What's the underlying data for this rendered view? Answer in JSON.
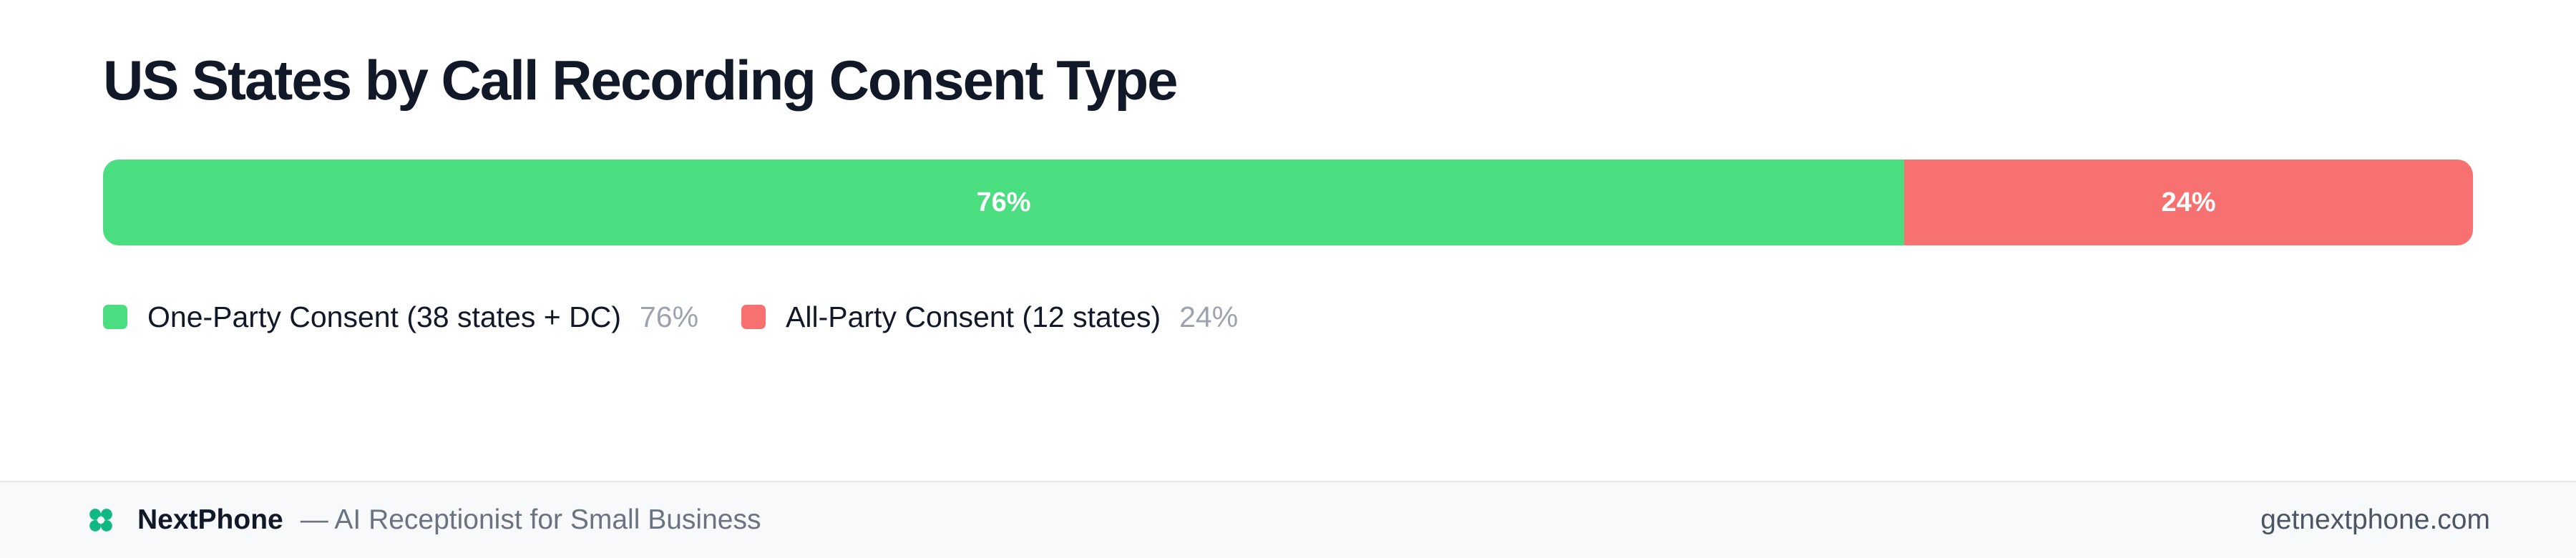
{
  "chart_data": {
    "type": "bar",
    "orientation": "horizontal-stacked-100",
    "title": "US States by Call Recording Consent Type",
    "categories": [
      "One-Party Consent (38 states + DC)",
      "All-Party Consent (12 states)"
    ],
    "values": [
      76,
      24
    ],
    "labels": [
      "76%",
      "24%"
    ],
    "colors": [
      "#4ade80",
      "#f87171"
    ],
    "legend_position": "bottom-left",
    "grid": false
  },
  "legend": {
    "items": [
      {
        "label": "One-Party Consent (38 states + DC)",
        "pct": "76%"
      },
      {
        "label": "All-Party Consent (12 states)",
        "pct": "24%"
      }
    ]
  },
  "footer": {
    "brand": "NextPhone",
    "tagline": "— AI Receptionist for Small Business",
    "website": "getnextphone.com",
    "icon": "clover-icon",
    "icon_color": "#10b981",
    "background": "#f8f9fb"
  }
}
